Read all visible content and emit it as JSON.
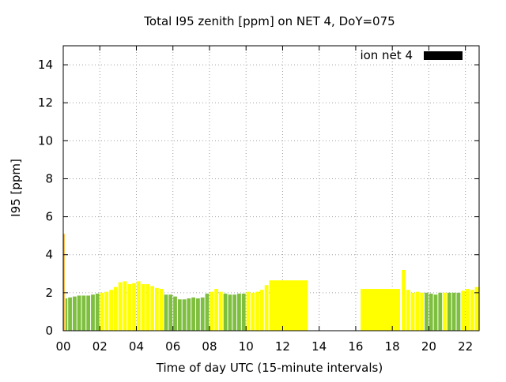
{
  "chart_data": {
    "type": "bar",
    "title": "Total I95 zenith [ppm] on NET 4, DoY=075",
    "xlabel": "Time of day UTC (15-minute intervals)",
    "ylabel": "I95 [ppm]",
    "xlim": [
      0,
      22.75
    ],
    "ylim": [
      0,
      15
    ],
    "x_ticks": [
      0,
      2,
      4,
      6,
      8,
      10,
      12,
      14,
      16,
      18,
      20,
      22
    ],
    "x_tick_labels": [
      "00",
      "02",
      "04",
      "06",
      "08",
      "10",
      "12",
      "14",
      "16",
      "18",
      "20",
      "22"
    ],
    "y_ticks": [
      0,
      2,
      4,
      6,
      8,
      10,
      12,
      14
    ],
    "y_tick_labels": [
      "0",
      "2",
      "4",
      "6",
      "8",
      "10",
      "12",
      "14"
    ],
    "grid": true,
    "legend": {
      "label": "ion net 4",
      "color": "#000000",
      "placement": "top-right"
    },
    "colors": {
      "green": "#7fbf3f",
      "yellow": "#ffff00",
      "orange": "#ffa500"
    },
    "bars": [
      {
        "start": 0.0,
        "end": 0.1,
        "value": 5.1,
        "color": "orange"
      },
      {
        "start": 0.1,
        "end": 0.25,
        "value": 1.7,
        "color": "green"
      },
      {
        "start": 0.25,
        "end": 0.5,
        "value": 1.75,
        "color": "green"
      },
      {
        "start": 0.5,
        "end": 0.75,
        "value": 1.8,
        "color": "green"
      },
      {
        "start": 0.75,
        "end": 1.0,
        "value": 1.85,
        "color": "green"
      },
      {
        "start": 1.0,
        "end": 1.25,
        "value": 1.85,
        "color": "green"
      },
      {
        "start": 1.25,
        "end": 1.5,
        "value": 1.85,
        "color": "green"
      },
      {
        "start": 1.5,
        "end": 1.75,
        "value": 1.9,
        "color": "green"
      },
      {
        "start": 1.75,
        "end": 2.0,
        "value": 1.95,
        "color": "green"
      },
      {
        "start": 2.0,
        "end": 2.25,
        "value": 2.0,
        "color": "yellow"
      },
      {
        "start": 2.25,
        "end": 2.5,
        "value": 2.05,
        "color": "yellow"
      },
      {
        "start": 2.5,
        "end": 2.75,
        "value": 2.15,
        "color": "yellow"
      },
      {
        "start": 2.75,
        "end": 3.0,
        "value": 2.3,
        "color": "yellow"
      },
      {
        "start": 3.0,
        "end": 3.25,
        "value": 2.55,
        "color": "yellow"
      },
      {
        "start": 3.25,
        "end": 3.5,
        "value": 2.6,
        "color": "yellow"
      },
      {
        "start": 3.5,
        "end": 3.75,
        "value": 2.45,
        "color": "yellow"
      },
      {
        "start": 3.75,
        "end": 4.0,
        "value": 2.5,
        "color": "yellow"
      },
      {
        "start": 4.0,
        "end": 4.25,
        "value": 2.6,
        "color": "yellow"
      },
      {
        "start": 4.25,
        "end": 4.5,
        "value": 2.45,
        "color": "yellow"
      },
      {
        "start": 4.5,
        "end": 4.75,
        "value": 2.45,
        "color": "yellow"
      },
      {
        "start": 4.75,
        "end": 5.0,
        "value": 2.35,
        "color": "yellow"
      },
      {
        "start": 5.0,
        "end": 5.25,
        "value": 2.25,
        "color": "yellow"
      },
      {
        "start": 5.25,
        "end": 5.5,
        "value": 2.2,
        "color": "yellow"
      },
      {
        "start": 5.5,
        "end": 5.75,
        "value": 1.9,
        "color": "green"
      },
      {
        "start": 5.75,
        "end": 6.0,
        "value": 1.9,
        "color": "green"
      },
      {
        "start": 6.0,
        "end": 6.25,
        "value": 1.8,
        "color": "green"
      },
      {
        "start": 6.25,
        "end": 6.5,
        "value": 1.65,
        "color": "green"
      },
      {
        "start": 6.5,
        "end": 6.75,
        "value": 1.65,
        "color": "green"
      },
      {
        "start": 6.75,
        "end": 7.0,
        "value": 1.7,
        "color": "green"
      },
      {
        "start": 7.0,
        "end": 7.25,
        "value": 1.75,
        "color": "green"
      },
      {
        "start": 7.25,
        "end": 7.5,
        "value": 1.7,
        "color": "green"
      },
      {
        "start": 7.5,
        "end": 7.75,
        "value": 1.75,
        "color": "green"
      },
      {
        "start": 7.75,
        "end": 8.0,
        "value": 1.95,
        "color": "green"
      },
      {
        "start": 8.0,
        "end": 8.25,
        "value": 2.05,
        "color": "yellow"
      },
      {
        "start": 8.25,
        "end": 8.5,
        "value": 2.2,
        "color": "yellow"
      },
      {
        "start": 8.5,
        "end": 8.75,
        "value": 2.05,
        "color": "yellow"
      },
      {
        "start": 8.75,
        "end": 9.0,
        "value": 1.95,
        "color": "green"
      },
      {
        "start": 9.0,
        "end": 9.25,
        "value": 1.9,
        "color": "green"
      },
      {
        "start": 9.25,
        "end": 9.5,
        "value": 1.9,
        "color": "green"
      },
      {
        "start": 9.5,
        "end": 9.75,
        "value": 1.95,
        "color": "green"
      },
      {
        "start": 9.75,
        "end": 10.0,
        "value": 1.95,
        "color": "green"
      },
      {
        "start": 10.0,
        "end": 10.25,
        "value": 2.05,
        "color": "yellow"
      },
      {
        "start": 10.25,
        "end": 10.5,
        "value": 2.0,
        "color": "yellow"
      },
      {
        "start": 10.5,
        "end": 10.75,
        "value": 2.05,
        "color": "yellow"
      },
      {
        "start": 10.75,
        "end": 11.0,
        "value": 2.15,
        "color": "yellow"
      },
      {
        "start": 11.0,
        "end": 11.25,
        "value": 2.4,
        "color": "yellow"
      },
      {
        "start": 11.25,
        "end": 13.4,
        "value": 2.65,
        "color": "yellow"
      },
      {
        "start": 16.25,
        "end": 18.45,
        "value": 2.2,
        "color": "yellow"
      },
      {
        "start": 18.5,
        "end": 18.75,
        "value": 3.2,
        "color": "yellow"
      },
      {
        "start": 18.75,
        "end": 19.0,
        "value": 2.15,
        "color": "yellow"
      },
      {
        "start": 19.0,
        "end": 19.25,
        "value": 2.0,
        "color": "yellow"
      },
      {
        "start": 19.25,
        "end": 19.5,
        "value": 2.05,
        "color": "yellow"
      },
      {
        "start": 19.5,
        "end": 19.75,
        "value": 2.0,
        "color": "yellow"
      },
      {
        "start": 19.75,
        "end": 20.0,
        "value": 2.0,
        "color": "green"
      },
      {
        "start": 20.0,
        "end": 20.25,
        "value": 1.95,
        "color": "green"
      },
      {
        "start": 20.25,
        "end": 20.5,
        "value": 1.9,
        "color": "green"
      },
      {
        "start": 20.5,
        "end": 20.75,
        "value": 2.0,
        "color": "green"
      },
      {
        "start": 20.75,
        "end": 21.0,
        "value": 2.0,
        "color": "yellow"
      },
      {
        "start": 21.0,
        "end": 21.25,
        "value": 2.0,
        "color": "green"
      },
      {
        "start": 21.25,
        "end": 21.5,
        "value": 2.0,
        "color": "green"
      },
      {
        "start": 21.5,
        "end": 21.75,
        "value": 2.0,
        "color": "green"
      },
      {
        "start": 21.75,
        "end": 22.0,
        "value": 2.1,
        "color": "yellow"
      },
      {
        "start": 22.0,
        "end": 22.25,
        "value": 2.2,
        "color": "yellow"
      },
      {
        "start": 22.25,
        "end": 22.5,
        "value": 2.15,
        "color": "yellow"
      },
      {
        "start": 22.5,
        "end": 22.75,
        "value": 2.3,
        "color": "yellow"
      }
    ]
  }
}
